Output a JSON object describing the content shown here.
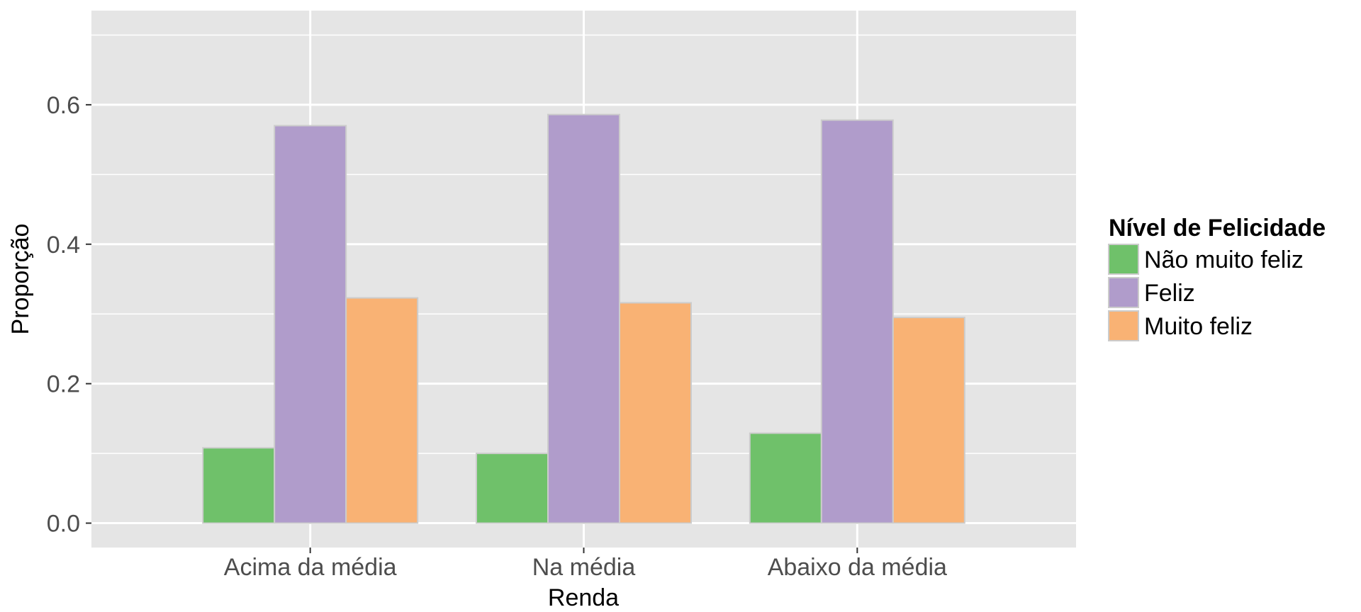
{
  "chart_data": {
    "type": "bar",
    "title": "",
    "xlabel": "Renda",
    "ylabel": "Proporção",
    "categories": [
      "Acima da média",
      "Na média",
      "Abaixo da média"
    ],
    "series": [
      {
        "name": "Não muito feliz",
        "color": "#6fc16a",
        "values": [
          0.108,
          0.1,
          0.129
        ]
      },
      {
        "name": "Feliz",
        "color": "#b09ccb",
        "values": [
          0.57,
          0.586,
          0.578
        ]
      },
      {
        "name": "Muito feliz",
        "color": "#f9b274",
        "values": [
          0.323,
          0.316,
          0.295
        ]
      }
    ],
    "ylim": [
      -0.035,
      0.735
    ],
    "yticks": [
      "0.0",
      "0.2",
      "0.4",
      "0.6"
    ],
    "grid": true,
    "legend": {
      "title": "Nível de Felicidade",
      "position": "right"
    },
    "colors": {
      "panel": "#e5e5e5",
      "grid": "#ffffff",
      "bar_outline": "#cccccc"
    }
  }
}
